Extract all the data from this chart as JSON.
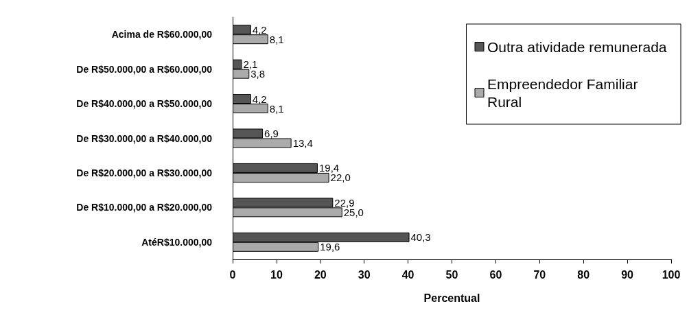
{
  "chart_data": {
    "type": "bar",
    "orientation": "horizontal",
    "xlabel": "Percentual",
    "categories": [
      "Acima de R$60.000,00",
      "De R$50.000,00 a R$60.000,00",
      "De R$40.000,00 a R$50.000,00",
      "De R$30.000,00 a R$40.000,00",
      "De R$20.000,00 a R$30.000,00",
      "De R$10.000,00 a R$20.000,00",
      "AtéR$10.000,00"
    ],
    "series": [
      {
        "name": "Outra atividade remunerada",
        "color": "#555555",
        "values": [
          4.2,
          2.1,
          4.2,
          6.9,
          19.4,
          22.9,
          40.3
        ],
        "value_labels": [
          "4,2",
          "2,1",
          "4,2",
          "6,9",
          "19,4",
          "22,9",
          "40,3"
        ]
      },
      {
        "name": "Empreendedor Familiar Rural",
        "color": "#aaaaaa",
        "values": [
          8.1,
          3.8,
          8.1,
          13.4,
          22.0,
          25.0,
          19.6
        ],
        "value_labels": [
          "8,1",
          "3,8",
          "8,1",
          "13,4",
          "22,0",
          "25,0",
          "19,6"
        ]
      }
    ],
    "xlim": [
      0,
      100
    ],
    "xticks": [
      0,
      10,
      20,
      30,
      40,
      50,
      60,
      70,
      80,
      90,
      100
    ],
    "grid": false,
    "legend": "top right"
  }
}
